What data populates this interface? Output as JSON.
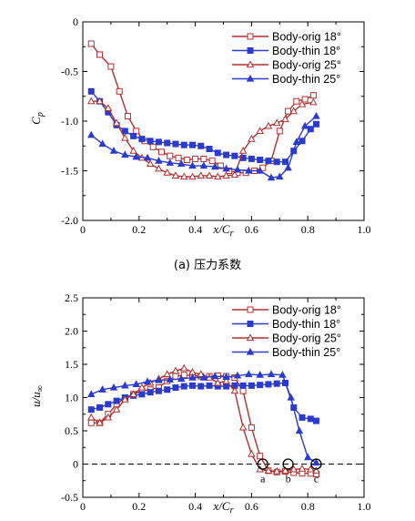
{
  "chart_data": [
    {
      "type": "line",
      "xlabel": "x/C",
      "xlabel_sub": "r",
      "ylabel": "C",
      "ylabel_sub": "p",
      "caption": "(a) 压力系数",
      "xlim": [
        0,
        1.0
      ],
      "ylim": [
        -2.0,
        0
      ],
      "xticks": [
        "0",
        "0.2",
        "0.4",
        "0.6",
        "0.8",
        "1.0"
      ],
      "yticks": [
        "0",
        "-0.5",
        "-1.0",
        "-1.5",
        "-2.0"
      ],
      "legend_position": "top-right",
      "series": [
        {
          "name": "Body-orig  18°",
          "color": "#b03030",
          "marker": "square-open",
          "x": [
            0.03,
            0.06,
            0.1,
            0.13,
            0.16,
            0.19,
            0.22,
            0.25,
            0.28,
            0.31,
            0.34,
            0.37,
            0.4,
            0.43,
            0.46,
            0.49,
            0.52,
            0.55,
            0.58,
            0.61,
            0.64,
            0.67,
            0.7,
            0.73,
            0.76,
            0.79,
            0.82
          ],
          "y": [
            -0.22,
            -0.33,
            -0.45,
            -0.7,
            -0.95,
            -1.1,
            -1.2,
            -1.26,
            -1.31,
            -1.35,
            -1.37,
            -1.39,
            -1.38,
            -1.38,
            -1.4,
            -1.45,
            -1.5,
            -1.52,
            -1.52,
            -1.5,
            -1.47,
            -1.4,
            -1.1,
            -0.9,
            -0.8,
            -0.78,
            -0.74
          ]
        },
        {
          "name": "Body-thin  18°",
          "color": "#2b3bcc",
          "marker": "square-filled",
          "x": [
            0.03,
            0.06,
            0.09,
            0.12,
            0.15,
            0.18,
            0.21,
            0.24,
            0.27,
            0.3,
            0.33,
            0.36,
            0.39,
            0.42,
            0.45,
            0.48,
            0.51,
            0.54,
            0.57,
            0.6,
            0.63,
            0.66,
            0.69,
            0.72,
            0.75,
            0.78,
            0.81,
            0.83
          ],
          "y": [
            -0.7,
            -0.8,
            -0.91,
            -1.04,
            -1.1,
            -1.15,
            -1.18,
            -1.2,
            -1.21,
            -1.22,
            -1.23,
            -1.24,
            -1.24,
            -1.25,
            -1.28,
            -1.32,
            -1.34,
            -1.35,
            -1.37,
            -1.38,
            -1.39,
            -1.4,
            -1.41,
            -1.41,
            -1.3,
            -1.2,
            -1.08,
            -1.03
          ]
        },
        {
          "name": "Body-orig  25°",
          "color": "#b03030",
          "marker": "triangle-open",
          "x": [
            0.03,
            0.06,
            0.09,
            0.12,
            0.15,
            0.18,
            0.21,
            0.24,
            0.27,
            0.3,
            0.33,
            0.36,
            0.39,
            0.42,
            0.45,
            0.48,
            0.51,
            0.54,
            0.57,
            0.6,
            0.63,
            0.66,
            0.69,
            0.72,
            0.75,
            0.78,
            0.82
          ],
          "y": [
            -0.8,
            -0.8,
            -0.87,
            -1.02,
            -1.17,
            -1.3,
            -1.37,
            -1.43,
            -1.48,
            -1.52,
            -1.55,
            -1.56,
            -1.56,
            -1.55,
            -1.55,
            -1.56,
            -1.55,
            -1.54,
            -1.3,
            -1.18,
            -1.1,
            -1.05,
            -1.02,
            -0.98,
            -0.9,
            -0.83,
            -0.81
          ]
        },
        {
          "name": "Body-thin  25°",
          "color": "#2b3bcc",
          "marker": "triangle-filled",
          "x": [
            0.03,
            0.07,
            0.11,
            0.15,
            0.19,
            0.23,
            0.27,
            0.31,
            0.35,
            0.39,
            0.43,
            0.47,
            0.51,
            0.55,
            0.59,
            0.63,
            0.67,
            0.7,
            0.73,
            0.76,
            0.79,
            0.83
          ],
          "y": [
            -1.14,
            -1.23,
            -1.3,
            -1.34,
            -1.36,
            -1.37,
            -1.4,
            -1.42,
            -1.43,
            -1.45,
            -1.45,
            -1.46,
            -1.48,
            -1.49,
            -1.5,
            -1.5,
            -1.57,
            -1.56,
            -1.47,
            -1.21,
            -1.05,
            -0.95
          ]
        }
      ]
    },
    {
      "type": "line",
      "xlabel": "x/C",
      "xlabel_sub": "r",
      "ylabel": "u/u",
      "ylabel_sub": "∞",
      "xlim": [
        0,
        1.0
      ],
      "ylim": [
        -0.5,
        2.5
      ],
      "xticks": [
        "0",
        "0.2",
        "0.4",
        "0.6",
        "0.8",
        "1.0"
      ],
      "yticks": [
        "2.5",
        "2.0",
        "1.5",
        "1.0",
        "0.5",
        "0",
        "-0.5"
      ],
      "legend_position": "top-right",
      "reference_line_y": 0,
      "annotations": [
        {
          "label": "a",
          "x": 0.64,
          "y": 0
        },
        {
          "label": "b",
          "x": 0.73,
          "y": 0
        },
        {
          "label": "c",
          "x": 0.83,
          "y": 0
        }
      ],
      "series": [
        {
          "name": "Body-orig  18°",
          "color": "#b03030",
          "marker": "square-open",
          "x": [
            0.03,
            0.06,
            0.09,
            0.12,
            0.15,
            0.18,
            0.21,
            0.24,
            0.27,
            0.3,
            0.33,
            0.36,
            0.39,
            0.42,
            0.45,
            0.48,
            0.51,
            0.54,
            0.57,
            0.6,
            0.63,
            0.66,
            0.69,
            0.72,
            0.75,
            0.78,
            0.81,
            0.83
          ],
          "y": [
            0.62,
            0.62,
            0.75,
            0.9,
            1.0,
            1.05,
            1.1,
            1.12,
            1.15,
            1.25,
            1.32,
            1.34,
            1.33,
            1.32,
            1.32,
            1.33,
            1.32,
            1.3,
            1.1,
            0.55,
            0.12,
            -0.1,
            -0.12,
            -0.11,
            -0.13,
            -0.14,
            -0.14,
            -0.15
          ]
        },
        {
          "name": "Body-thin  18°",
          "color": "#2b3bcc",
          "marker": "square-filled",
          "x": [
            0.03,
            0.06,
            0.09,
            0.12,
            0.15,
            0.18,
            0.21,
            0.24,
            0.27,
            0.3,
            0.33,
            0.36,
            0.39,
            0.42,
            0.45,
            0.48,
            0.51,
            0.54,
            0.57,
            0.6,
            0.63,
            0.66,
            0.69,
            0.72,
            0.75,
            0.78,
            0.81,
            0.83
          ],
          "y": [
            0.82,
            0.85,
            0.9,
            0.95,
            1.0,
            1.03,
            1.05,
            1.08,
            1.1,
            1.12,
            1.15,
            1.17,
            1.18,
            1.17,
            1.18,
            1.17,
            1.17,
            1.18,
            1.18,
            1.18,
            1.19,
            1.2,
            1.21,
            1.22,
            0.85,
            0.7,
            0.68,
            0.65
          ]
        },
        {
          "name": "Body-orig  25°",
          "color": "#b03030",
          "marker": "triangle-open",
          "x": [
            0.03,
            0.06,
            0.09,
            0.12,
            0.15,
            0.18,
            0.21,
            0.24,
            0.27,
            0.3,
            0.33,
            0.36,
            0.39,
            0.42,
            0.45,
            0.48,
            0.51,
            0.54,
            0.57,
            0.6,
            0.63,
            0.66,
            0.69,
            0.72,
            0.75,
            0.78,
            0.81,
            0.83
          ],
          "y": [
            0.7,
            0.62,
            0.7,
            0.82,
            0.97,
            1.05,
            1.15,
            1.22,
            1.28,
            1.35,
            1.4,
            1.44,
            1.38,
            1.35,
            1.3,
            1.22,
            1.25,
            1.1,
            0.55,
            0.15,
            -0.08,
            -0.1,
            -0.11,
            -0.1,
            -0.08,
            -0.07,
            -0.08,
            -0.1
          ]
        },
        {
          "name": "Body-thin  25°",
          "color": "#2b3bcc",
          "marker": "triangle-filled",
          "x": [
            0.03,
            0.07,
            0.11,
            0.15,
            0.19,
            0.23,
            0.27,
            0.31,
            0.35,
            0.39,
            0.43,
            0.47,
            0.51,
            0.55,
            0.59,
            0.63,
            0.67,
            0.71,
            0.74,
            0.77,
            0.8,
            0.83
          ],
          "y": [
            1.05,
            1.12,
            1.15,
            1.18,
            1.2,
            1.24,
            1.26,
            1.27,
            1.28,
            1.3,
            1.3,
            1.32,
            1.31,
            1.33,
            1.35,
            1.34,
            1.35,
            1.34,
            1.0,
            0.5,
            0.1,
            0.02
          ]
        }
      ]
    }
  ]
}
